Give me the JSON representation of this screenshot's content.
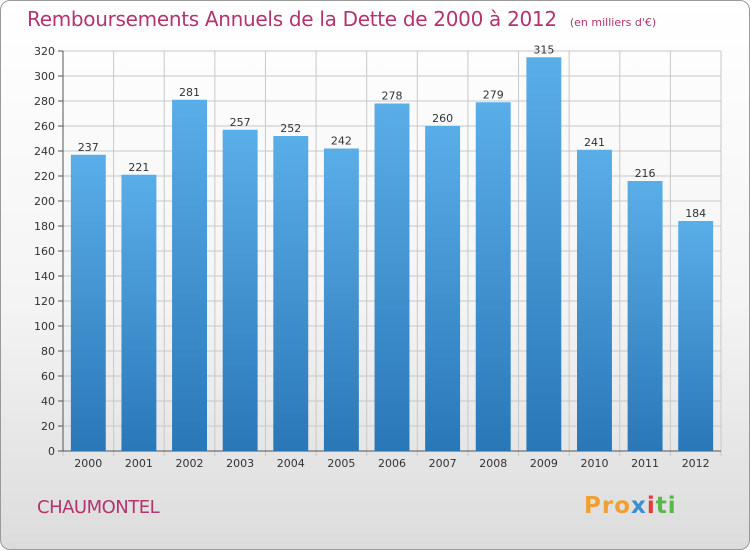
{
  "header": {
    "title": "Remboursements Annuels de la Dette de 2000 à 2012",
    "subtitle": "(en milliers d'€)"
  },
  "footer": {
    "commune": "CHAUMONTEL",
    "logo_parts": [
      "Pro",
      "x",
      "i",
      "ti"
    ]
  },
  "colors": {
    "title": "#b3346e",
    "bar_top": "#5aaee8",
    "bar_bottom": "#2a77b8",
    "grid": "#c8c8c8"
  },
  "chart_data": {
    "type": "bar",
    "title": "Remboursements Annuels de la Dette de 2000 à 2012",
    "subtitle": "(en milliers d'€)",
    "categories": [
      "2000",
      "2001",
      "2002",
      "2003",
      "2004",
      "2005",
      "2006",
      "2007",
      "2008",
      "2009",
      "2010",
      "2011",
      "2012"
    ],
    "values": [
      237,
      221,
      281,
      257,
      252,
      242,
      278,
      260,
      279,
      315,
      241,
      216,
      184
    ],
    "ylim": [
      0,
      320
    ],
    "ytick_step": 20,
    "grid": true,
    "legend": "none"
  }
}
